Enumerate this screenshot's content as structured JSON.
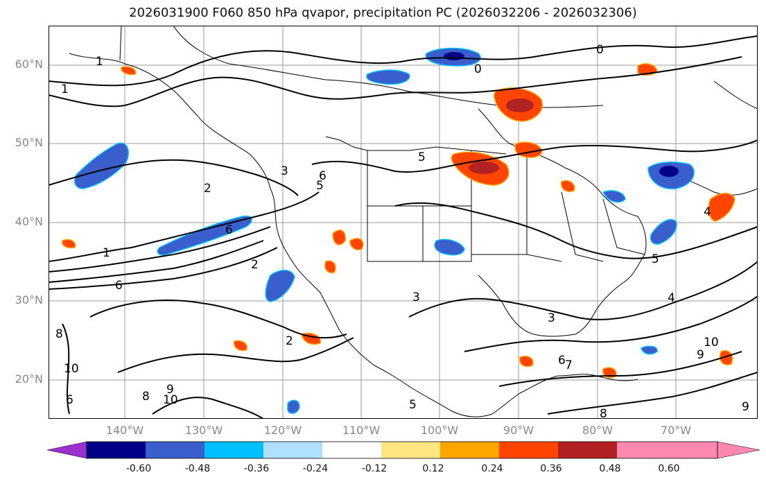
{
  "title": "2026031900 F060 850 hPa qvapor, precipitation PC (2026032206 - 2026032306)",
  "lat_labels": [
    "60°N",
    "50°N",
    "40°N",
    "30°N",
    "20°N"
  ],
  "lon_labels": [
    "140°W",
    "130°W",
    "120°W",
    "110°W",
    "100°W",
    "90°W",
    "80°W",
    "70°W"
  ],
  "contour_labels": [
    "1",
    "1",
    "0",
    "0",
    "2",
    "5",
    "3",
    "6",
    "1",
    "2",
    "6",
    "5",
    "3",
    "6",
    "4",
    "5",
    "4",
    "2",
    "3",
    "10",
    "8",
    "10",
    "9",
    "8",
    "6",
    "5",
    "9",
    "10",
    "9",
    "7",
    "6",
    "8"
  ],
  "colorbar": {
    "tick_labels": [
      "-0.60",
      "-0.48",
      "-0.36",
      "-0.24",
      "-0.12",
      "0.12",
      "0.24",
      "0.36",
      "0.48",
      "0.60"
    ],
    "colors": [
      "#9b30d0",
      "#000088",
      "#3a5fcd",
      "#00bfff",
      "#b0e0ff",
      "#ffffff",
      "#ffe680",
      "#ffa500",
      "#ff4500",
      "#b22222",
      "#ff88b0",
      "#ff88b0"
    ]
  }
}
